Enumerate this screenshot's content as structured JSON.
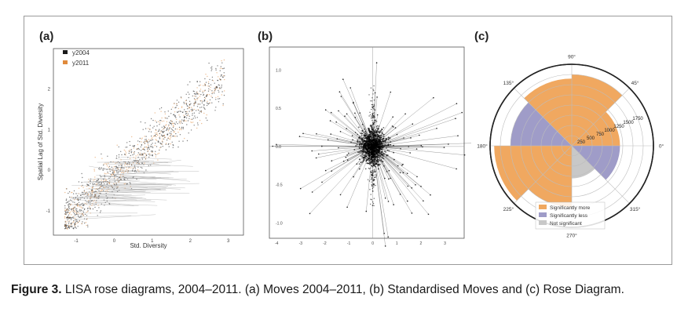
{
  "panels": {
    "a": {
      "label": "(a)",
      "xlabel": "Std. Diversity",
      "ylabel": "Spatial Lag of Std. Diversity",
      "legend": [
        "y2004",
        "y2011"
      ],
      "xticks": [
        "-1",
        "0",
        "1",
        "2",
        "3"
      ],
      "yticks": [
        "-1",
        "0",
        "1",
        "2"
      ]
    },
    "b": {
      "label": "(b)",
      "xticks": [
        "-4",
        "-3",
        "-2",
        "-1",
        "0",
        "1",
        "2",
        "3"
      ],
      "yticks": [
        "1.0",
        "0.5",
        "0.0",
        "-0.5",
        "-1.0"
      ]
    },
    "c": {
      "label": "(c)",
      "angle_labels": [
        "0°",
        "45°",
        "90°",
        "135°",
        "180°",
        "225°",
        "270°",
        "315°"
      ],
      "radial_labels": [
        "250",
        "500",
        "750",
        "1000",
        "1250",
        "1500",
        "1750"
      ],
      "legend": [
        "Significantly more",
        "Significantly less",
        "Not significant"
      ]
    }
  },
  "colors": {
    "more": "#f0a860",
    "less": "#9f9cc8",
    "not_significant": "#c8c8c8",
    "y2004": "#1a1a1a",
    "y2011": "#e08a3c"
  },
  "chart_data": [
    {
      "type": "scatter",
      "panel": "a",
      "series": [
        {
          "name": "y2004"
        },
        {
          "name": "y2011"
        }
      ],
      "xlabel": "Std. Diversity",
      "ylabel": "Spatial Lag of Std. Diversity",
      "xlim": [
        -1.6,
        3.4
      ],
      "ylim": [
        -1.6,
        3.0
      ]
    },
    {
      "type": "scatter",
      "panel": "b",
      "title": "Standardised Moves",
      "xlim": [
        -4.3,
        3.8
      ],
      "ylim": [
        -1.2,
        1.3
      ]
    },
    {
      "type": "bar",
      "panel": "c",
      "title": "Rose Diagram",
      "sectors": [
        {
          "range": "0–45°",
          "class": "more",
          "value": 1180
        },
        {
          "range": "45–90°",
          "class": "more",
          "value": 1750
        },
        {
          "range": "90–135°",
          "class": "more",
          "value": 1650
        },
        {
          "range": "135–180°",
          "class": "less",
          "value": 1500
        },
        {
          "range": "180–225°",
          "class": "more",
          "value": 1900
        },
        {
          "range": "225–270°",
          "class": "more",
          "value": 1500
        },
        {
          "range": "270–315°",
          "class": "not_significant",
          "value": 800
        },
        {
          "range": "315–360°",
          "class": "less",
          "value": 1180
        }
      ],
      "rmax": 2000
    }
  ],
  "caption": {
    "label": "Figure 3.",
    "text": "LISA rose diagrams, 2004–2011. (a) Moves 2004–2011, (b) Standardised Moves and (c) Rose Diagram."
  }
}
